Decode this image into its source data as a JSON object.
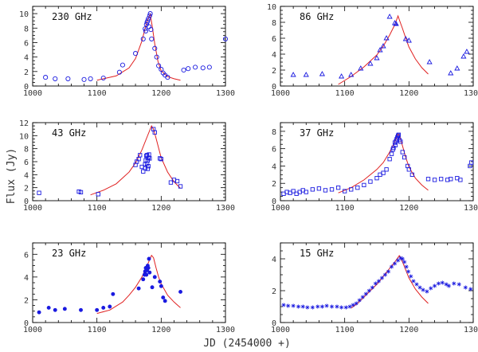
{
  "figure": {
    "xlabel": "JD (2454000 +)",
    "ylabel": "Flux (Jy)"
  },
  "chart_data": [
    {
      "type": "scatter",
      "title": "230 GHz",
      "marker": "circle",
      "xlim": [
        1000,
        1300
      ],
      "ylim": [
        0,
        11
      ],
      "xticks": [
        1000,
        1100,
        1200,
        1300
      ],
      "yticks": [
        0,
        2,
        4,
        6,
        8,
        10
      ],
      "points": [
        [
          1020,
          1.2
        ],
        [
          1035,
          1.0
        ],
        [
          1055,
          1.0
        ],
        [
          1080,
          0.9
        ],
        [
          1090,
          1.0
        ],
        [
          1110,
          1.1
        ],
        [
          1135,
          1.9
        ],
        [
          1140,
          2.9
        ],
        [
          1160,
          4.5
        ],
        [
          1172,
          6.5
        ],
        [
          1175,
          7.9
        ],
        [
          1177,
          8.5
        ],
        [
          1178,
          8.8
        ],
        [
          1179,
          9.0
        ],
        [
          1180,
          9.3
        ],
        [
          1181,
          8.2
        ],
        [
          1182,
          9.7
        ],
        [
          1183,
          10.0
        ],
        [
          1176,
          7.6
        ],
        [
          1184,
          7.8
        ],
        [
          1185,
          6.5
        ],
        [
          1190,
          5.2
        ],
        [
          1193,
          4.0
        ],
        [
          1196,
          2.8
        ],
        [
          1200,
          2.3
        ],
        [
          1203,
          1.8
        ],
        [
          1206,
          1.5
        ],
        [
          1210,
          1.2
        ],
        [
          1235,
          2.2
        ],
        [
          1242,
          2.4
        ],
        [
          1253,
          2.6
        ],
        [
          1265,
          2.5
        ],
        [
          1275,
          2.6
        ],
        [
          1300,
          6.5
        ]
      ],
      "model": {
        "x": [
          1100,
          1130,
          1150,
          1160,
          1170,
          1175,
          1180,
          1183,
          1186,
          1190,
          1195,
          1200,
          1210,
          1220,
          1230
        ],
        "y": [
          0.8,
          1.4,
          2.5,
          3.8,
          6.2,
          8.0,
          9.4,
          9.9,
          8.3,
          5.8,
          3.4,
          2.1,
          1.3,
          1.0,
          0.8
        ]
      }
    },
    {
      "type": "scatter",
      "title": "86 GHz",
      "marker": "triangle",
      "xlim": [
        1000,
        1300
      ],
      "ylim": [
        0,
        10
      ],
      "xticks": [
        1000,
        1100,
        1200,
        1300
      ],
      "yticks": [
        0,
        2,
        4,
        6,
        8,
        10
      ],
      "points": [
        [
          1020,
          1.4
        ],
        [
          1040,
          1.4
        ],
        [
          1065,
          1.5
        ],
        [
          1095,
          1.2
        ],
        [
          1110,
          1.4
        ],
        [
          1125,
          2.2
        ],
        [
          1140,
          2.8
        ],
        [
          1150,
          3.5
        ],
        [
          1155,
          4.5
        ],
        [
          1160,
          5.0
        ],
        [
          1165,
          6.0
        ],
        [
          1170,
          8.7
        ],
        [
          1178,
          7.9
        ],
        [
          1180,
          7.8
        ],
        [
          1195,
          5.9
        ],
        [
          1200,
          5.7
        ],
        [
          1232,
          3.0
        ],
        [
          1265,
          1.6
        ],
        [
          1275,
          2.2
        ],
        [
          1285,
          3.7
        ],
        [
          1290,
          4.3
        ]
      ],
      "model": {
        "x": [
          1090,
          1110,
          1130,
          1150,
          1160,
          1170,
          1178,
          1183,
          1186,
          1190,
          1195,
          1200,
          1210,
          1220,
          1230
        ],
        "y": [
          0.2,
          1.2,
          2.4,
          3.9,
          5.0,
          6.4,
          7.7,
          8.8,
          8.1,
          7.2,
          6.0,
          4.9,
          3.4,
          2.3,
          1.5
        ]
      }
    },
    {
      "type": "scatter",
      "title": "43 GHz",
      "marker": "square",
      "xlim": [
        1000,
        1300
      ],
      "ylim": [
        0,
        12
      ],
      "xticks": [
        1000,
        1100,
        1200,
        1300
      ],
      "yticks": [
        0,
        2,
        4,
        6,
        8,
        10,
        12
      ],
      "points": [
        [
          1010,
          1.2
        ],
        [
          1072,
          1.4
        ],
        [
          1075,
          1.3
        ],
        [
          1102,
          1.0
        ],
        [
          1160,
          5.5
        ],
        [
          1162,
          6.0
        ],
        [
          1165,
          6.4
        ],
        [
          1167,
          7.0
        ],
        [
          1170,
          5.2
        ],
        [
          1172,
          4.5
        ],
        [
          1175,
          5.0
        ],
        [
          1175,
          5.6
        ],
        [
          1176,
          6.2
        ],
        [
          1177,
          6.9
        ],
        [
          1178,
          7.0
        ],
        [
          1178,
          5.7
        ],
        [
          1179,
          6.2
        ],
        [
          1179,
          4.9
        ],
        [
          1180,
          5.3
        ],
        [
          1180,
          6.6
        ],
        [
          1181,
          7.1
        ],
        [
          1182,
          6.5
        ],
        [
          1188,
          11.0
        ],
        [
          1190,
          10.5
        ],
        [
          1198,
          6.5
        ],
        [
          1200,
          6.4
        ],
        [
          1215,
          2.8
        ],
        [
          1220,
          3.2
        ],
        [
          1225,
          3.0
        ],
        [
          1230,
          2.2
        ]
      ],
      "model": {
        "x": [
          1090,
          1110,
          1130,
          1150,
          1160,
          1170,
          1178,
          1185,
          1188,
          1192,
          1196,
          1200,
          1210,
          1220,
          1230
        ],
        "y": [
          0.9,
          1.6,
          2.6,
          4.4,
          5.8,
          7.8,
          9.8,
          11.5,
          11.0,
          9.6,
          8.1,
          6.6,
          4.4,
          2.9,
          1.9
        ]
      }
    },
    {
      "type": "scatter",
      "title": "37 GHz",
      "marker": "square",
      "xlim": [
        1000,
        1300
      ],
      "ylim": [
        0,
        9
      ],
      "xticks": [
        1000,
        1100,
        1200,
        1300
      ],
      "yticks": [
        0,
        2,
        4,
        6,
        8
      ],
      "points": [
        [
          1005,
          0.8
        ],
        [
          1010,
          1.0
        ],
        [
          1015,
          0.9
        ],
        [
          1020,
          1.1
        ],
        [
          1025,
          0.8
        ],
        [
          1030,
          1.0
        ],
        [
          1035,
          1.2
        ],
        [
          1040,
          1.0
        ],
        [
          1050,
          1.3
        ],
        [
          1060,
          1.4
        ],
        [
          1070,
          1.2
        ],
        [
          1080,
          1.3
        ],
        [
          1090,
          1.5
        ],
        [
          1100,
          1.1
        ],
        [
          1110,
          1.3
        ],
        [
          1120,
          1.5
        ],
        [
          1130,
          1.8
        ],
        [
          1140,
          2.2
        ],
        [
          1150,
          2.6
        ],
        [
          1155,
          3.0
        ],
        [
          1160,
          3.2
        ],
        [
          1165,
          3.6
        ],
        [
          1170,
          4.8
        ],
        [
          1173,
          5.4
        ],
        [
          1175,
          5.9
        ],
        [
          1176,
          6.1
        ],
        [
          1178,
          6.7
        ],
        [
          1179,
          6.4
        ],
        [
          1180,
          6.9
        ],
        [
          1181,
          7.1
        ],
        [
          1182,
          7.3
        ],
        [
          1183,
          7.5
        ],
        [
          1184,
          7.6
        ],
        [
          1185,
          7.0
        ],
        [
          1187,
          6.8
        ],
        [
          1190,
          5.6
        ],
        [
          1193,
          5.0
        ],
        [
          1198,
          4.0
        ],
        [
          1200,
          3.6
        ],
        [
          1205,
          3.0
        ],
        [
          1230,
          2.5
        ],
        [
          1240,
          2.4
        ],
        [
          1250,
          2.5
        ],
        [
          1260,
          2.4
        ],
        [
          1265,
          2.5
        ],
        [
          1275,
          2.6
        ],
        [
          1280,
          2.4
        ],
        [
          1295,
          4.0
        ],
        [
          1297,
          4.4
        ]
      ],
      "model": {
        "x": [
          1090,
          1110,
          1130,
          1150,
          1160,
          1170,
          1178,
          1183,
          1186,
          1190,
          1195,
          1200,
          1210,
          1220,
          1230
        ],
        "y": [
          0.9,
          1.5,
          2.4,
          3.6,
          4.4,
          5.6,
          6.8,
          7.7,
          7.4,
          6.3,
          5.0,
          3.9,
          2.6,
          1.8,
          1.2
        ]
      }
    },
    {
      "type": "scatter",
      "title": "23 GHz",
      "marker": "filled-circle",
      "xlim": [
        1000,
        1300
      ],
      "ylim": [
        0,
        7
      ],
      "xticks": [
        1000,
        1100,
        1200,
        1300
      ],
      "yticks": [
        0,
        2,
        4,
        6
      ],
      "points": [
        [
          1010,
          0.9
        ],
        [
          1025,
          1.3
        ],
        [
          1035,
          1.1
        ],
        [
          1050,
          1.2
        ],
        [
          1075,
          1.1
        ],
        [
          1100,
          1.1
        ],
        [
          1110,
          1.3
        ],
        [
          1120,
          1.4
        ],
        [
          1125,
          2.5
        ],
        [
          1165,
          3.0
        ],
        [
          1172,
          3.8
        ],
        [
          1174,
          4.2
        ],
        [
          1175,
          4.5
        ],
        [
          1176,
          4.8
        ],
        [
          1177,
          4.2
        ],
        [
          1178,
          4.6
        ],
        [
          1179,
          5.0
        ],
        [
          1180,
          4.8
        ],
        [
          1181,
          5.6
        ],
        [
          1182,
          4.4
        ],
        [
          1186,
          3.1
        ],
        [
          1190,
          4.0
        ],
        [
          1198,
          3.6
        ],
        [
          1200,
          3.2
        ],
        [
          1203,
          2.2
        ],
        [
          1206,
          1.9
        ],
        [
          1230,
          2.7
        ]
      ],
      "model": {
        "x": [
          1100,
          1120,
          1140,
          1150,
          1160,
          1170,
          1178,
          1185,
          1188,
          1192,
          1196,
          1200,
          1210,
          1220,
          1230
        ],
        "y": [
          0.8,
          1.1,
          1.8,
          2.4,
          3.1,
          4.0,
          5.0,
          5.9,
          5.7,
          4.8,
          4.0,
          3.4,
          2.4,
          1.8,
          1.3
        ]
      }
    },
    {
      "type": "scatter",
      "title": "15 GHz",
      "marker": "star",
      "xlim": [
        1000,
        1300
      ],
      "ylim": [
        0,
        5
      ],
      "xticks": [
        1000,
        1100,
        1200,
        1300
      ],
      "yticks": [
        0,
        2,
        4
      ],
      "points": [
        [
          1005,
          1.1
        ],
        [
          1012,
          1.05
        ],
        [
          1020,
          1.05
        ],
        [
          1028,
          1.0
        ],
        [
          1035,
          1.0
        ],
        [
          1042,
          0.95
        ],
        [
          1050,
          0.95
        ],
        [
          1058,
          1.0
        ],
        [
          1065,
          1.0
        ],
        [
          1072,
          1.05
        ],
        [
          1080,
          1.0
        ],
        [
          1088,
          1.0
        ],
        [
          1095,
          0.95
        ],
        [
          1102,
          0.95
        ],
        [
          1108,
          1.0
        ],
        [
          1113,
          1.1
        ],
        [
          1118,
          1.2
        ],
        [
          1123,
          1.4
        ],
        [
          1128,
          1.6
        ],
        [
          1133,
          1.8
        ],
        [
          1138,
          2.0
        ],
        [
          1143,
          2.2
        ],
        [
          1148,
          2.45
        ],
        [
          1153,
          2.6
        ],
        [
          1158,
          2.8
        ],
        [
          1163,
          3.0
        ],
        [
          1168,
          3.2
        ],
        [
          1173,
          3.5
        ],
        [
          1178,
          3.7
        ],
        [
          1183,
          3.9
        ],
        [
          1187,
          4.05
        ],
        [
          1190,
          4.0
        ],
        [
          1193,
          3.8
        ],
        [
          1196,
          3.5
        ],
        [
          1199,
          3.2
        ],
        [
          1203,
          2.9
        ],
        [
          1207,
          2.6
        ],
        [
          1212,
          2.4
        ],
        [
          1217,
          2.2
        ],
        [
          1222,
          2.05
        ],
        [
          1228,
          1.95
        ],
        [
          1234,
          2.15
        ],
        [
          1240,
          2.3
        ],
        [
          1246,
          2.45
        ],
        [
          1252,
          2.5
        ],
        [
          1258,
          2.4
        ],
        [
          1262,
          2.3
        ],
        [
          1270,
          2.45
        ],
        [
          1278,
          2.4
        ],
        [
          1288,
          2.2
        ],
        [
          1296,
          2.1
        ]
      ],
      "model": {
        "x": [
          1110,
          1120,
          1130,
          1140,
          1150,
          1160,
          1170,
          1178,
          1185,
          1190,
          1195,
          1200,
          1210,
          1220,
          1230
        ],
        "y": [
          0.9,
          1.2,
          1.6,
          2.0,
          2.4,
          2.9,
          3.4,
          3.8,
          4.2,
          3.8,
          3.3,
          2.8,
          2.1,
          1.6,
          1.2
        ]
      }
    }
  ]
}
